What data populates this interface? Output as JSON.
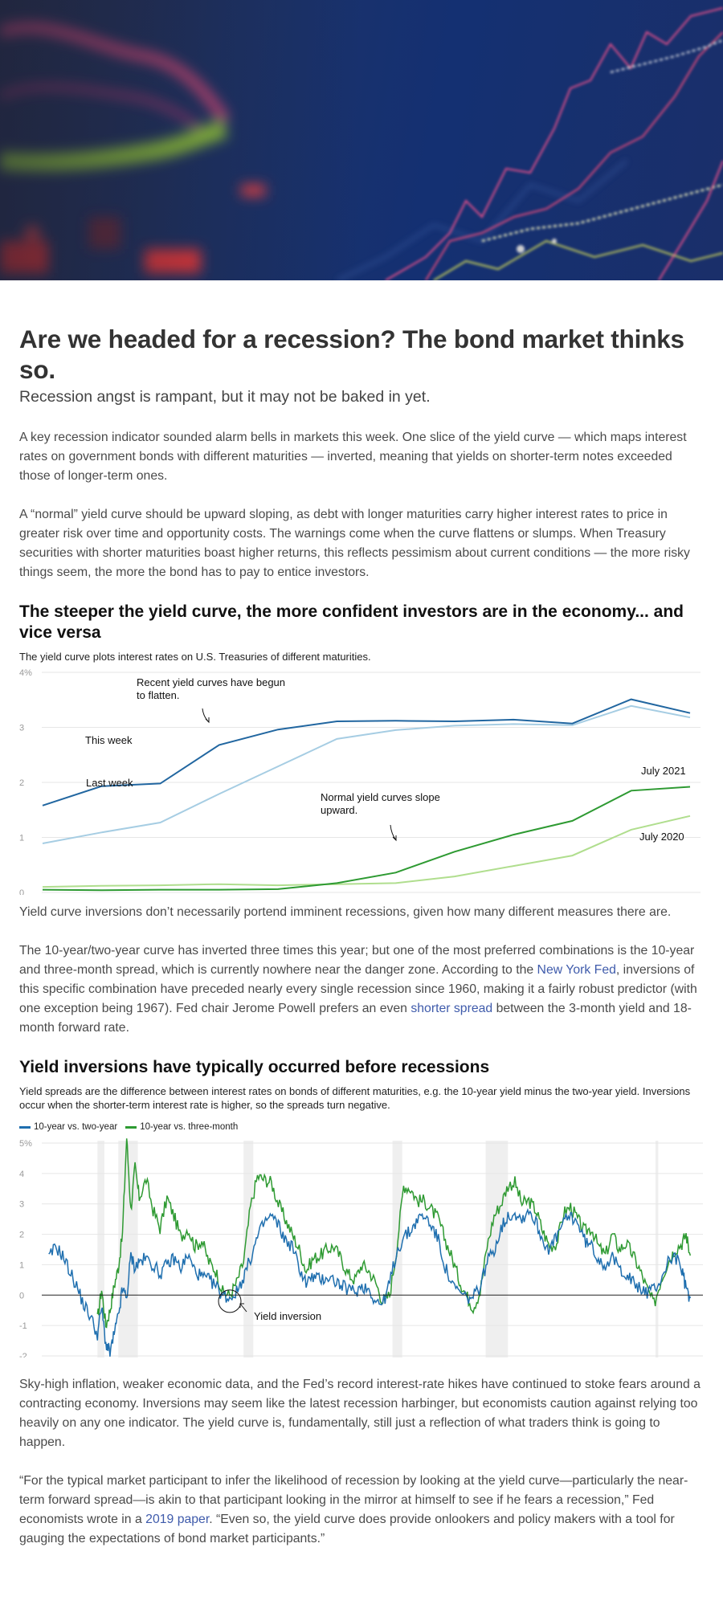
{
  "article": {
    "headline": "Are we headed for a recession? The bond market thinks so.",
    "dek": "Recession angst is rampant, but it may not be baked in yet.",
    "p1": "A key recession indicator sounded alarm bells in markets this week. One slice of the yield curve — which maps interest rates on government bonds with different maturities — inverted, meaning that yields on shorter-term notes exceeded those of longer-term ones.",
    "p2": "A “normal” yield curve should be upward sloping, as debt with longer maturities carry higher interest rates to price in greater risk over time and opportunity costs. The warnings come when the curve flattens or slumps. When Treasury securities with shorter maturities boast higher returns, this reflects pessimism about current conditions — the more risky things seem, the more the bond has to pay to entice investors.",
    "p3": "Yield curve inversions don’t necessarily portend imminent recessions, given how many different measures there are.",
    "p4": {
      "a": "The 10-year/two-year curve has inverted three times this year; but one of the most preferred combinations is the 10-year and three-month spread, which is currently nowhere near the danger zone. According to the ",
      "link1": "New York Fed",
      "b": ", inversions of this specific combination have preceded nearly every single recession since 1960, making it a fairly robust predictor (with one exception being 1967). Fed chair Jerome Powell prefers an even ",
      "link2": "shorter spread",
      "c": " between the 3-month yield and 18-month forward rate."
    },
    "p5": "Sky-high inflation, weaker economic data, and the Fed’s record interest-rate hikes have continued to stoke fears around a contracting economy. Inversions may seem like the latest recession harbinger, but economists caution against relying too heavily on any one indicator. The yield curve is, fundamentally, still just a reflection of what traders think is going to happen.",
    "p6": {
      "a": "“For the typical market participant to infer the likelihood of recession by looking at the yield curve—particularly the near-term forward spread—is akin to that participant looking in the mirror at himself to see if he fears a recession,” Fed economists wrote in a ",
      "link": "2019 paper",
      "b": ". “Even so, the yield curve does provide onlookers and policy makers with a tool for gauging the expectations of bond market participants.”"
    }
  },
  "colors": {
    "this_week": "#2166a0",
    "last_week": "#a6cde3",
    "july_2021": "#2e9a32",
    "july_2020": "#b0de8e",
    "spread_10y2y": "#1f6faf",
    "spread_10y3m": "#2e9a32",
    "recession_band": "#efefef",
    "link": "#3f5bab"
  },
  "chart_data": [
    {
      "type": "line",
      "title": "The steeper the yield curve, the more confident investors are in the economy... and vice versa",
      "subtitle": "The yield curve plots interest rates on U.S. Treasuries of different maturities.",
      "xlabel": "",
      "ylabel": "",
      "ylim": [
        0,
        4
      ],
      "yticks": [
        "4%",
        "3",
        "2",
        "1",
        "0"
      ],
      "grid": true,
      "x": [
        1,
        2,
        3,
        4,
        5,
        6,
        7,
        8,
        9,
        10,
        11,
        12
      ],
      "series": [
        {
          "name": "This week",
          "values": [
            1.58,
            1.93,
            1.98,
            2.68,
            2.96,
            3.11,
            3.12,
            3.11,
            3.14,
            3.07,
            3.51,
            3.26
          ]
        },
        {
          "name": "Last week",
          "values": [
            0.89,
            1.09,
            1.27,
            1.79,
            2.29,
            2.79,
            2.95,
            3.03,
            3.06,
            3.04,
            3.39,
            3.18
          ]
        },
        {
          "name": "July 2021",
          "values": [
            0.05,
            0.04,
            0.05,
            0.05,
            0.06,
            0.17,
            0.36,
            0.74,
            1.05,
            1.3,
            1.85,
            1.92
          ]
        },
        {
          "name": "July 2020",
          "values": [
            0.1,
            0.12,
            0.13,
            0.15,
            0.13,
            0.15,
            0.17,
            0.29,
            0.48,
            0.67,
            1.14,
            1.39
          ]
        }
      ],
      "annotations": [
        "Recent yield curves have begun to flatten.",
        "Normal yield curves slope upward."
      ]
    },
    {
      "type": "line",
      "title": "Yield inversions have typically occurred before recessions",
      "subtitle": "Yield spreads are the difference between interest rates on bonds of different maturities, e.g. the 10-year yield minus the two-year yield. Inversions occur when the shorter-term interest rate is higher, so the spreads turn negative.",
      "xlabel": "",
      "ylabel": "",
      "ylim": [
        -2,
        5
      ],
      "yticks": [
        "5%",
        "4",
        "3",
        "2",
        "1",
        "0",
        "-1",
        "-2"
      ],
      "grid": true,
      "xlim": [
        1976,
        2022.7
      ],
      "recessions": [
        [
          1980.0,
          1980.5
        ],
        [
          1981.5,
          1982.9
        ],
        [
          1990.5,
          1991.2
        ],
        [
          2001.2,
          2001.9
        ],
        [
          2007.9,
          2009.5
        ],
        [
          2020.1,
          2020.3
        ]
      ],
      "series": [
        {
          "name": "10-year vs. two-year",
          "x": [
            1976.5,
            1977.0,
            1977.5,
            1978.0,
            1978.5,
            1979.0,
            1979.5,
            1980.0,
            1980.3,
            1980.6,
            1980.9,
            1981.2,
            1981.5,
            1981.8,
            1982.1,
            1982.4,
            1982.7,
            1983.0,
            1983.5,
            1984.0,
            1984.5,
            1985.0,
            1985.5,
            1986.0,
            1986.5,
            1987.0,
            1987.5,
            1988.0,
            1988.5,
            1989.0,
            1989.5,
            1990.0,
            1990.5,
            1991.0,
            1991.5,
            1992.0,
            1992.5,
            1993.0,
            1993.5,
            1994.0,
            1994.5,
            1995.0,
            1995.5,
            1996.0,
            1996.5,
            1997.0,
            1997.5,
            1998.0,
            1998.5,
            1999.0,
            1999.5,
            2000.0,
            2000.5,
            2001.0,
            2001.5,
            2002.0,
            2002.5,
            2003.0,
            2003.5,
            2004.0,
            2004.5,
            2005.0,
            2005.5,
            2006.0,
            2006.5,
            2007.0,
            2007.5,
            2008.0,
            2008.5,
            2009.0,
            2009.5,
            2010.0,
            2010.5,
            2011.0,
            2011.5,
            2012.0,
            2012.5,
            2013.0,
            2013.5,
            2014.0,
            2014.5,
            2015.0,
            2015.5,
            2016.0,
            2016.5,
            2017.0,
            2017.5,
            2018.0,
            2018.5,
            2019.0,
            2019.5,
            2020.0,
            2020.5,
            2021.0,
            2021.5,
            2022.0,
            2022.3,
            2022.6
          ],
          "values": [
            1.2,
            1.6,
            1.3,
            0.8,
            0.3,
            -0.3,
            -0.7,
            -1.3,
            -0.4,
            -1.6,
            -1.9,
            -1.3,
            -0.7,
            0.2,
            -0.1,
            1.3,
            0.9,
            1.1,
            1.2,
            1.0,
            0.7,
            1.0,
            1.2,
            0.9,
            1.3,
            0.8,
            0.6,
            0.5,
            0.3,
            0.0,
            -0.1,
            0.1,
            0.6,
            1.2,
            1.9,
            2.4,
            2.6,
            2.3,
            1.8,
            1.6,
            0.9,
            0.4,
            0.6,
            0.5,
            0.6,
            0.5,
            0.3,
            0.2,
            0.1,
            0.3,
            0.2,
            -0.2,
            -0.3,
            0.4,
            1.4,
            1.9,
            2.1,
            2.5,
            2.6,
            2.3,
            1.8,
            0.9,
            0.3,
            0.1,
            -0.1,
            -0.1,
            0.3,
            1.1,
            1.5,
            2.2,
            2.6,
            2.7,
            2.5,
            2.8,
            2.4,
            1.8,
            1.5,
            1.9,
            2.4,
            2.6,
            2.4,
            1.8,
            1.6,
            1.2,
            1.0,
            1.2,
            0.9,
            0.7,
            0.4,
            0.2,
            0.1,
            0.2,
            0.5,
            1.1,
            1.3,
            0.8,
            0.2,
            -0.1
          ]
        },
        {
          "name": "10-year vs. three-month",
          "x": [
            1980.0,
            1980.3,
            1980.6,
            1980.9,
            1981.2,
            1981.5,
            1981.8,
            1982.1,
            1982.4,
            1982.7,
            1983.0,
            1983.5,
            1984.0,
            1984.5,
            1985.0,
            1985.5,
            1986.0,
            1986.5,
            1987.0,
            1987.5,
            1988.0,
            1988.5,
            1989.0,
            1989.5,
            1990.0,
            1990.5,
            1991.0,
            1991.5,
            1992.0,
            1992.5,
            1993.0,
            1993.5,
            1994.0,
            1994.5,
            1995.0,
            1995.5,
            1996.0,
            1996.5,
            1997.0,
            1997.5,
            1998.0,
            1998.5,
            1999.0,
            1999.5,
            2000.0,
            2000.5,
            2001.0,
            2001.5,
            2002.0,
            2002.5,
            2003.0,
            2003.5,
            2004.0,
            2004.5,
            2005.0,
            2005.5,
            2006.0,
            2006.5,
            2007.0,
            2007.5,
            2008.0,
            2008.5,
            2009.0,
            2009.5,
            2010.0,
            2010.5,
            2011.0,
            2011.5,
            2012.0,
            2012.5,
            2013.0,
            2013.5,
            2014.0,
            2014.5,
            2015.0,
            2015.5,
            2016.0,
            2016.5,
            2017.0,
            2017.5,
            2018.0,
            2018.5,
            2019.0,
            2019.5,
            2020.0,
            2020.5,
            2021.0,
            2021.5,
            2022.0,
            2022.3,
            2022.6
          ],
          "values": [
            -0.8,
            0.2,
            -1.0,
            -0.5,
            0.3,
            0.9,
            2.0,
            5.2,
            2.8,
            4.2,
            3.2,
            3.8,
            2.8,
            2.2,
            3.2,
            2.6,
            1.9,
            2.2,
            1.6,
            1.8,
            1.1,
            0.8,
            0.1,
            0.0,
            0.4,
            1.1,
            2.9,
            3.9,
            3.8,
            3.7,
            3.0,
            2.5,
            2.0,
            1.5,
            0.8,
            1.2,
            1.3,
            1.5,
            1.6,
            1.2,
            0.7,
            0.5,
            1.0,
            0.8,
            0.4,
            -0.2,
            0.0,
            1.5,
            3.6,
            3.5,
            3.1,
            3.1,
            2.8,
            2.5,
            1.8,
            1.2,
            0.5,
            0.0,
            -0.4,
            0.1,
            1.6,
            2.6,
            3.0,
            3.6,
            3.7,
            3.0,
            3.1,
            2.8,
            2.1,
            1.6,
            1.7,
            2.7,
            2.9,
            2.5,
            2.1,
            2.2,
            1.6,
            1.3,
            2.0,
            1.5,
            1.7,
            1.3,
            0.8,
            0.2,
            -0.3,
            0.5,
            1.1,
            1.5,
            1.7,
            2.0,
            1.3
          ]
        }
      ],
      "annotations": [
        "Yield inversion"
      ]
    }
  ]
}
